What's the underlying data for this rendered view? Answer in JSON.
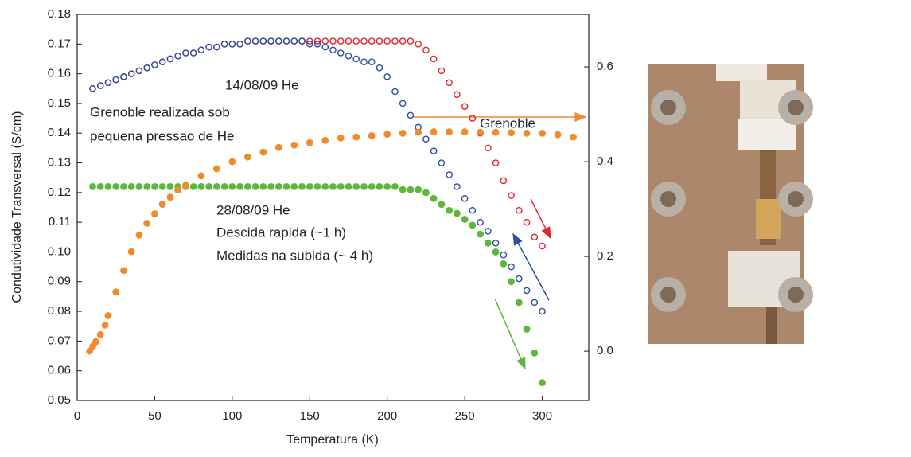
{
  "chart_data": {
    "type": "scatter",
    "xlabel": "Temperatura (K)",
    "ylabel": "Condutividade Transversal (S/cm)",
    "xlim": [
      0,
      330
    ],
    "xticks": [
      0,
      50,
      100,
      150,
      200,
      250,
      300
    ],
    "ylim": [
      0.05,
      0.18
    ],
    "yticks": [
      0.05,
      0.06,
      0.07,
      0.08,
      0.09,
      {
        "value": 0.1,
        "label": "0.10"
      },
      0.11,
      0.12,
      0.13,
      0.14,
      0.15,
      0.16,
      0.17,
      0.18
    ],
    "y2lim": [
      -0.104,
      0.711
    ],
    "y2ticks": [
      {
        "value": 0,
        "label": "0.0"
      },
      0.2,
      0.4,
      0.6
    ],
    "annotations": [
      "14/08/09 He",
      "Grenoble realizada sob",
      "pequena pressao de He",
      "Grenoble",
      "28/08/09 He",
      "Descida rapida (~1 h)",
      "Medidas na subida (~ 4 h)"
    ],
    "series": [
      {
        "color": "#e0262b",
        "marker": "open",
        "x": [
          10,
          15,
          20,
          25,
          30,
          35,
          40,
          45,
          50,
          55,
          60,
          65,
          70,
          75,
          80,
          85,
          90,
          95,
          100,
          105,
          110,
          115,
          120,
          125,
          130,
          135,
          140,
          145,
          150,
          155,
          160,
          165,
          170,
          175,
          180,
          185,
          190,
          195,
          200,
          205,
          210,
          215,
          220,
          225,
          230,
          235,
          240,
          245,
          250,
          255,
          260,
          265,
          270,
          275,
          280,
          285,
          290,
          295,
          300
        ],
        "values": [
          0.155,
          0.156,
          0.157,
          0.158,
          0.159,
          0.16,
          0.161,
          0.162,
          0.163,
          0.164,
          0.165,
          0.166,
          0.167,
          0.167,
          0.168,
          0.169,
          0.169,
          0.17,
          0.17,
          0.17,
          0.171,
          0.171,
          0.171,
          0.171,
          0.171,
          0.171,
          0.171,
          0.171,
          0.171,
          0.171,
          0.171,
          0.171,
          0.171,
          0.171,
          0.171,
          0.171,
          0.171,
          0.171,
          0.171,
          0.171,
          0.171,
          0.171,
          0.17,
          0.168,
          0.165,
          0.161,
          0.157,
          0.153,
          0.149,
          0.145,
          0.14,
          0.135,
          0.13,
          0.124,
          0.119,
          0.114,
          0.11,
          0.105,
          0.102
        ]
      },
      {
        "color": "#2e4fa0",
        "marker": "open",
        "x": [
          10,
          15,
          20,
          25,
          30,
          35,
          40,
          45,
          50,
          55,
          60,
          65,
          70,
          75,
          80,
          85,
          90,
          95,
          100,
          105,
          110,
          115,
          120,
          125,
          130,
          135,
          140,
          145,
          150,
          155,
          160,
          165,
          170,
          175,
          180,
          185,
          190,
          195,
          200,
          205,
          210,
          215,
          220,
          225,
          230,
          235,
          240,
          245,
          250,
          255,
          260,
          265,
          270,
          275,
          280,
          285,
          290,
          295,
          300
        ],
        "values": [
          0.155,
          0.156,
          0.157,
          0.158,
          0.159,
          0.16,
          0.161,
          0.162,
          0.163,
          0.164,
          0.165,
          0.166,
          0.167,
          0.167,
          0.168,
          0.169,
          0.169,
          0.17,
          0.17,
          0.17,
          0.171,
          0.171,
          0.171,
          0.171,
          0.171,
          0.171,
          0.171,
          0.171,
          0.17,
          0.17,
          0.169,
          0.168,
          0.167,
          0.166,
          0.165,
          0.164,
          0.164,
          0.162,
          0.159,
          0.154,
          0.15,
          0.146,
          0.142,
          0.138,
          0.134,
          0.13,
          0.126,
          0.122,
          0.118,
          0.114,
          0.11,
          0.107,
          0.103,
          0.099,
          0.095,
          0.091,
          0.087,
          0.083,
          0.08
        ]
      },
      {
        "color": "#5cb83a",
        "marker": "filled",
        "x": [
          10,
          15,
          20,
          25,
          30,
          35,
          40,
          45,
          50,
          55,
          60,
          65,
          70,
          75,
          80,
          85,
          90,
          95,
          100,
          105,
          110,
          115,
          120,
          125,
          130,
          135,
          140,
          145,
          150,
          155,
          160,
          165,
          170,
          175,
          180,
          185,
          190,
          195,
          200,
          205,
          210,
          215,
          220,
          225,
          230,
          235,
          240,
          245,
          250,
          255,
          260,
          265,
          270,
          275,
          280,
          285,
          290,
          295,
          300
        ],
        "values": [
          0.122,
          0.122,
          0.122,
          0.122,
          0.122,
          0.122,
          0.122,
          0.122,
          0.122,
          0.122,
          0.122,
          0.122,
          0.122,
          0.122,
          0.122,
          0.122,
          0.122,
          0.122,
          0.122,
          0.122,
          0.122,
          0.122,
          0.122,
          0.122,
          0.122,
          0.122,
          0.122,
          0.122,
          0.122,
          0.122,
          0.122,
          0.122,
          0.122,
          0.122,
          0.122,
          0.122,
          0.122,
          0.122,
          0.122,
          0.122,
          0.121,
          0.121,
          0.121,
          0.12,
          0.118,
          0.116,
          0.114,
          0.113,
          0.111,
          0.109,
          0.106,
          0.103,
          0.1,
          0.096,
          0.09,
          0.083,
          0.074,
          0.066,
          0.056
        ]
      },
      {
        "color": "#f08a2c",
        "marker": "filled",
        "axis": "y2",
        "x": [
          8,
          10,
          12,
          15,
          18,
          20,
          25,
          30,
          35,
          40,
          45,
          50,
          55,
          60,
          65,
          70,
          80,
          90,
          100,
          110,
          120,
          130,
          140,
          150,
          160,
          170,
          180,
          190,
          200,
          210,
          220,
          230,
          240,
          250,
          260,
          270,
          280,
          290,
          300,
          310,
          320
        ],
        "values": [
          0,
          0.01,
          0.02,
          0.035,
          0.055,
          0.075,
          0.125,
          0.17,
          0.21,
          0.245,
          0.27,
          0.29,
          0.31,
          0.325,
          0.34,
          0.35,
          0.37,
          0.385,
          0.4,
          0.41,
          0.42,
          0.43,
          0.435,
          0.44,
          0.445,
          0.45,
          0.452,
          0.455,
          0.458,
          0.46,
          0.462,
          0.463,
          0.463,
          0.463,
          0.462,
          0.462,
          0.461,
          0.46,
          0.46,
          0.457,
          0.452
        ]
      }
    ]
  }
}
